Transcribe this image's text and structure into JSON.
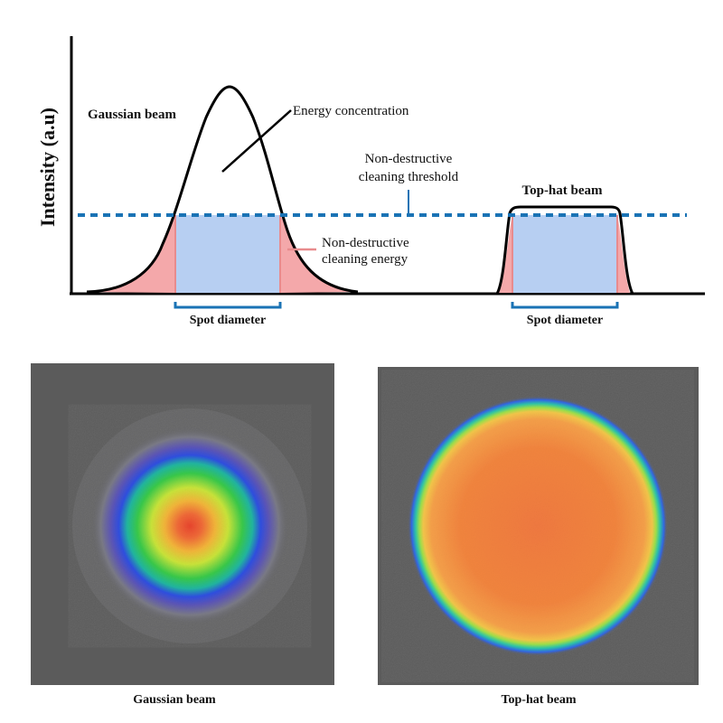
{
  "y_axis_label": "Intensity (a.u)",
  "gaussian": {
    "title": "Gaussian beam",
    "spot_label": "Spot diameter",
    "energy_label": "Energy concentration",
    "image_caption": "Gaussian beam"
  },
  "threshold_label": {
    "line1": "Non-destructive",
    "line2": "cleaning threshold"
  },
  "cleaning_energy_label": {
    "line1": "Non-destructive",
    "line2": "cleaning energy"
  },
  "tophat": {
    "title": "Top-hat beam",
    "spot_label": "Spot diameter",
    "image_caption": "Top-hat beam"
  },
  "colors": {
    "curve": "#000000",
    "threshold": "#1a73b5",
    "excess_fill": "#f4a8aa",
    "cleaning_fill": "#b7cff2",
    "bracket": "#1a73b5",
    "background_panel": "#5b5b5b"
  }
}
